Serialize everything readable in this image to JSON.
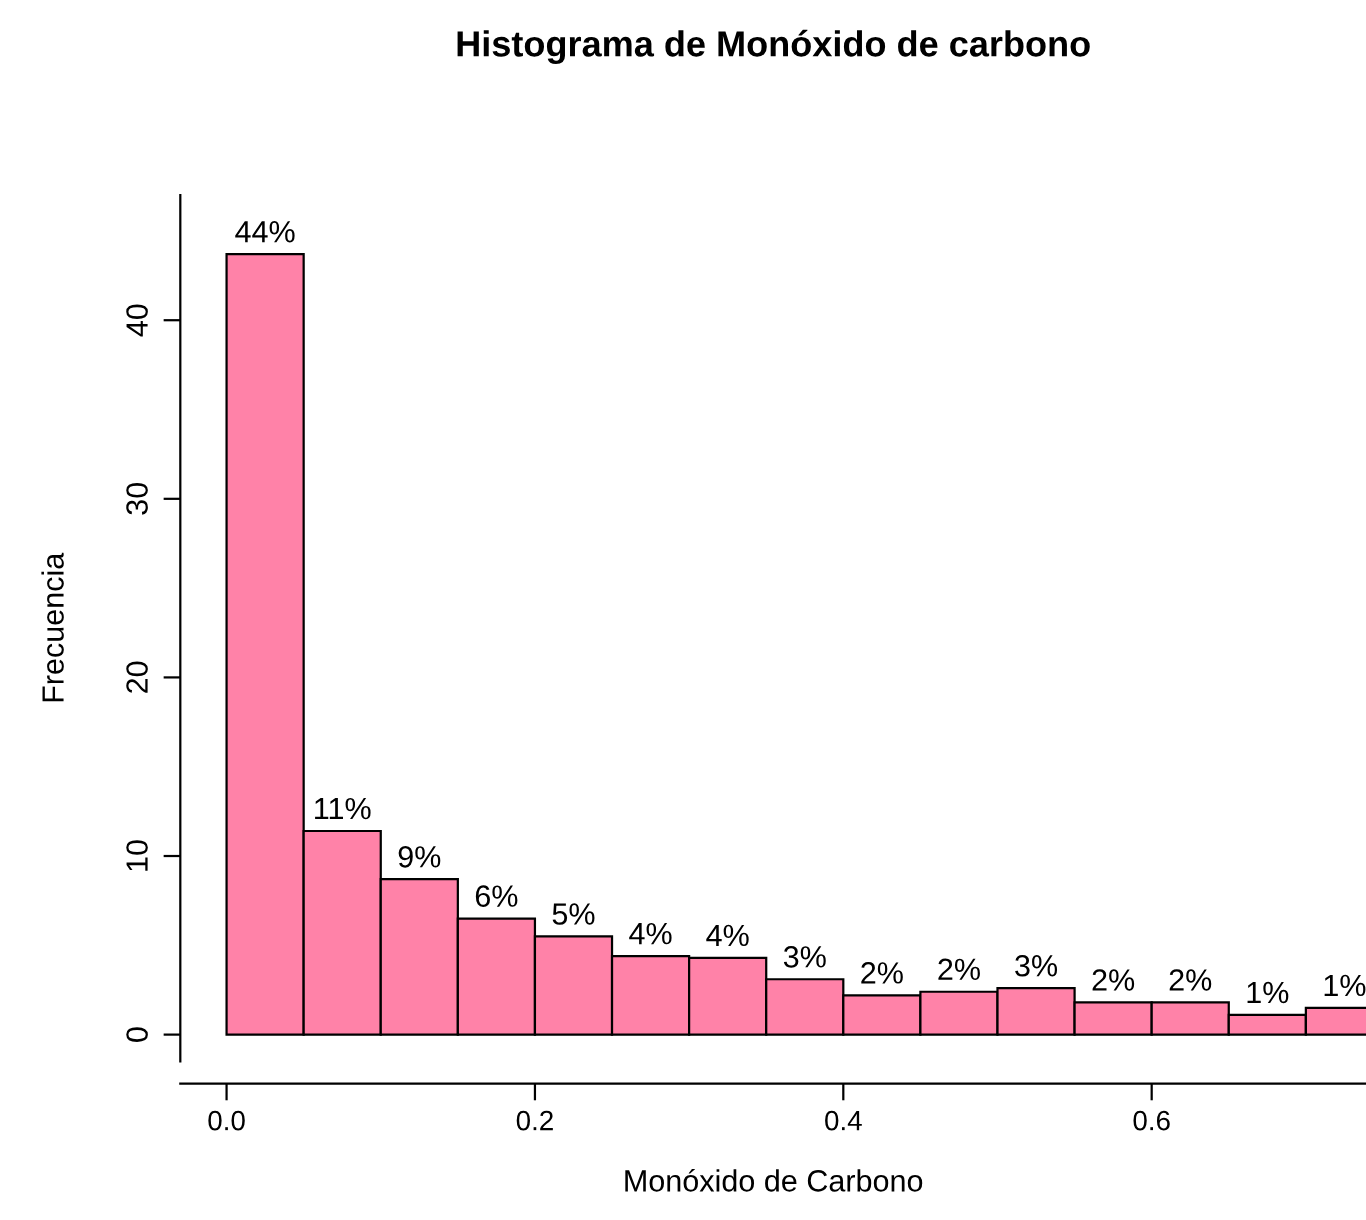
{
  "chart_data": {
    "type": "histogram",
    "title": "Histograma de Monóxido de carbono",
    "xlabel": "Monóxido de Carbono",
    "ylabel": "Frecuencia",
    "bins": [
      0,
      0.05,
      0.1,
      0.15,
      0.2,
      0.25,
      0.3,
      0.35,
      0.4,
      0.45,
      0.5,
      0.55,
      0.6,
      0.65,
      0.7,
      0.75
    ],
    "values": [
      43.7,
      11.4,
      8.7,
      6.5,
      5.5,
      4.4,
      4.3,
      3.1,
      2.2,
      2.4,
      2.6,
      1.8,
      1.8,
      1.1,
      1.5
    ],
    "value_labels": [
      "44%",
      "11%",
      "9%",
      "6%",
      "5%",
      "4%",
      "4%",
      "3%",
      "2%",
      "2%",
      "3%",
      "2%",
      "2%",
      "1%",
      "1%"
    ],
    "color": "#ff82a8",
    "xlim": [
      -0.03,
      0.739
    ],
    "ylim": [
      -1.5,
      47
    ],
    "xticks": [
      {
        "value": 0,
        "label": "0.0"
      },
      0.2,
      0.4,
      0.6
    ],
    "yticks": [
      0,
      10,
      20,
      30,
      40
    ],
    "grid": false
  }
}
